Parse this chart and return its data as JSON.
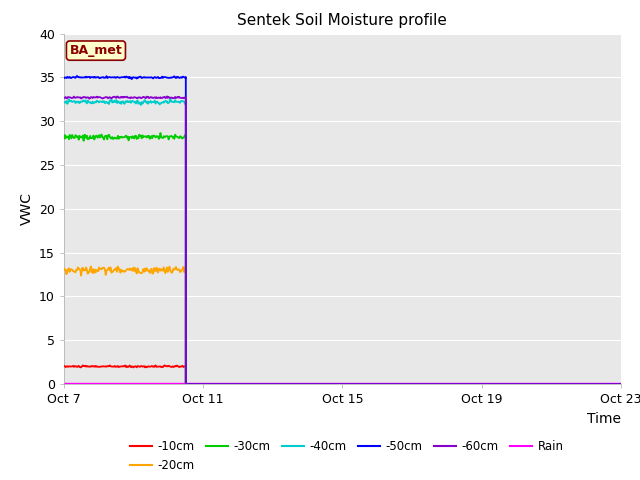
{
  "title": "Sentek Soil Moisture profile",
  "xlabel": "Time",
  "ylabel": "VWC",
  "ylim": [
    0,
    40
  ],
  "background_color": "#e8e8e8",
  "grid_color": "white",
  "annotation_label": "BA_met",
  "x_tick_labels": [
    "Oct 7",
    "Oct 11",
    "Oct 15",
    "Oct 19",
    "Oct 23"
  ],
  "x_tick_positions": [
    0,
    4,
    8,
    12,
    16
  ],
  "y_ticks": [
    0,
    5,
    10,
    15,
    20,
    25,
    30,
    35,
    40
  ],
  "series": [
    {
      "label": "-10cm",
      "color": "#ff0000",
      "y_value": 2.0,
      "noise_scale": 0.05,
      "seed": 10
    },
    {
      "label": "-20cm",
      "color": "#ffa500",
      "y_value": 13.0,
      "noise_scale": 0.2,
      "seed": 20
    },
    {
      "label": "-30cm",
      "color": "#00cc00",
      "y_value": 28.2,
      "noise_scale": 0.15,
      "seed": 30
    },
    {
      "label": "-40cm",
      "color": "#00cccc",
      "y_value": 32.2,
      "noise_scale": 0.12,
      "seed": 40
    },
    {
      "label": "-50cm",
      "color": "#0000ff",
      "y_value": 35.0,
      "noise_scale": 0.05,
      "seed": 50
    },
    {
      "label": "-60cm",
      "color": "#8800cc",
      "y_value": 32.7,
      "noise_scale": 0.05,
      "seed": 60
    },
    {
      "label": "Rain",
      "color": "#ff00ff",
      "y_value": 0.1,
      "noise_scale": 0.0,
      "seed": 70
    }
  ],
  "drop_x": 3.5,
  "x_total": 16,
  "figsize": [
    6.4,
    4.8
  ],
  "dpi": 100
}
